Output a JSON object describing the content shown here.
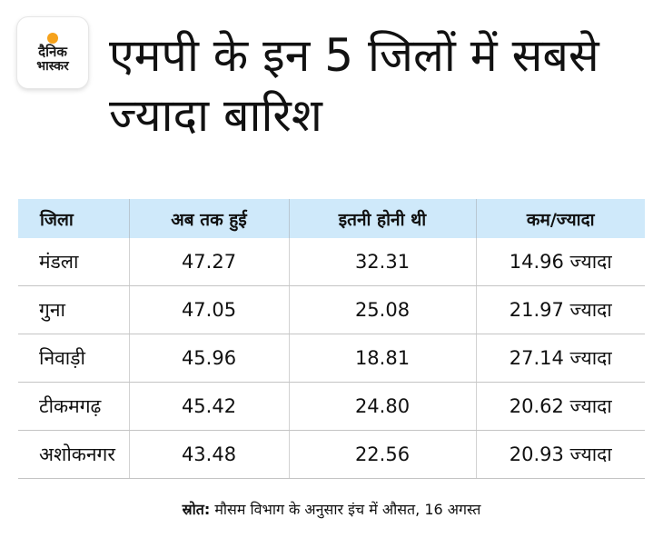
{
  "logo": {
    "line1": "दैनिक",
    "line2": "भास्कर"
  },
  "title": "एमपी के इन 5 जिलों में सबसे ज्यादा बारिश",
  "table": {
    "headers": [
      "जिला",
      "अब तक हुई",
      "इतनी होनी थी",
      "कम/ज्यादा"
    ],
    "rows": [
      [
        "मंडला",
        "47.27",
        "32.31",
        "14.96 ज्यादा"
      ],
      [
        "गुना",
        "47.05",
        "25.08",
        "21.97 ज्यादा"
      ],
      [
        "निवाड़ी",
        "45.96",
        "18.81",
        "27.14 ज्यादा"
      ],
      [
        "टीकमगढ़",
        "45.42",
        "24.80",
        "20.62 ज्यादा"
      ],
      [
        "अशोकनगर",
        "43.48",
        "22.56",
        "20.93 ज्यादा"
      ]
    ]
  },
  "source": {
    "label": "स्रोत:",
    "text": "मौसम विभाग के अनुसार इंच में औसत, 16 अगस्त"
  }
}
